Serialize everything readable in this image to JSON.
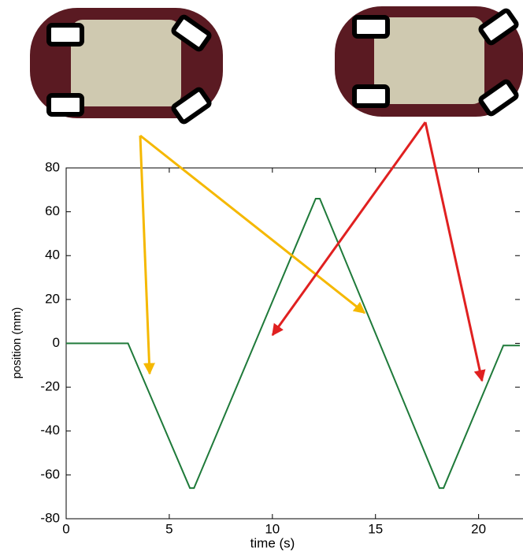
{
  "chart_data": {
    "type": "line",
    "xlabel": "time (s)",
    "ylabel": "position (mm)",
    "x": [
      0,
      3.0,
      6.0,
      6.2,
      12.1,
      12.3,
      18.1,
      18.3,
      21.2,
      22
    ],
    "values": [
      0,
      0,
      -66,
      -66,
      66,
      66,
      -66,
      -66,
      -1,
      -1
    ],
    "color": "#1f7a3a",
    "xlim": [
      0,
      22
    ],
    "ylim": [
      -80,
      80
    ],
    "xticks": [
      0,
      5,
      10,
      15,
      20
    ],
    "yticks": [
      -80,
      -60,
      -40,
      -20,
      0,
      20,
      40,
      60,
      80
    ]
  }
}
